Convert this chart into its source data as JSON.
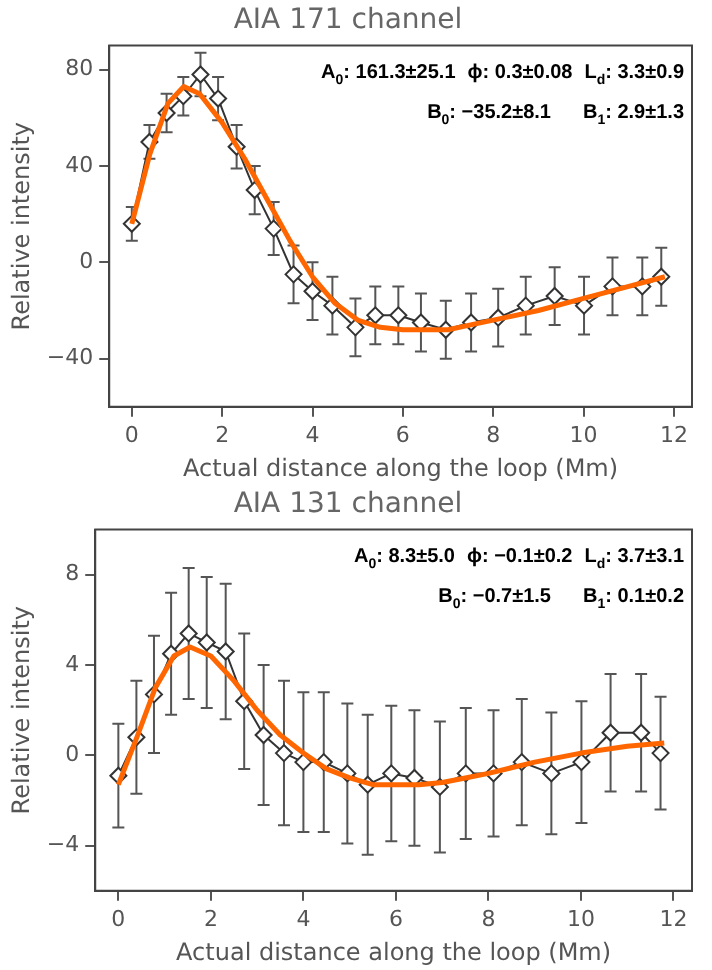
{
  "chart_data": [
    {
      "type": "line",
      "title": "AIA 171 channel",
      "xlabel": "Actual distance along the loop (Mm)",
      "ylabel": "Relative intensity",
      "xlim": [
        -0.5,
        12.4
      ],
      "xticks": [
        0,
        2,
        4,
        6,
        8,
        10,
        12
      ],
      "ylim": [
        -60,
        90
      ],
      "yticks": [
        -40,
        0,
        40,
        80
      ],
      "grid": false,
      "legend": false,
      "annotations": [
        "A$_{0}$: 161.3±25.1",
        "ϕ: 0.3±0.08",
        "L$_{d}$: 3.3±0.9",
        "B$_{0}$: −35.2±8.1",
        "B$_{1}$: 2.9±1.3"
      ],
      "series": [
        {
          "marker": "diamond",
          "line_style": "solid",
          "color": "#333333",
          "x": [
            0,
            0.39,
            0.77,
            1.14,
            1.52,
            1.91,
            2.32,
            2.72,
            3.14,
            3.58,
            4.0,
            4.44,
            4.95,
            5.39,
            5.9,
            6.4,
            6.95,
            7.51,
            8.11,
            8.72,
            9.36,
            10.01,
            10.64,
            11.3,
            11.72
          ],
          "values": [
            16,
            50,
            62,
            69,
            78,
            68,
            48,
            30,
            14,
            -5,
            -12,
            -18,
            -27,
            -22,
            -22,
            -25,
            -28,
            -25,
            -23,
            -18,
            -14,
            -18,
            -10,
            -10,
            -6
          ],
          "errors": [
            7,
            7,
            8,
            8,
            9,
            9,
            9,
            10,
            11,
            12,
            12,
            12,
            12,
            12,
            12,
            12,
            12,
            12,
            12,
            12,
            12,
            12,
            12,
            12,
            12
          ]
        },
        {
          "marker": "none",
          "line_style": "solid",
          "color": "#ff6600",
          "x": [
            0,
            0.4,
            0.8,
            1.15,
            1.5,
            2,
            2.5,
            3,
            3.5,
            4,
            4.5,
            5,
            5.5,
            6,
            6.5,
            7,
            7.5,
            8,
            9,
            10,
            11,
            11.8
          ],
          "values": [
            16,
            45,
            66,
            73,
            70,
            58,
            43,
            26,
            9,
            -6,
            -17,
            -24,
            -27,
            -28,
            -28,
            -28,
            -26,
            -24,
            -20,
            -15,
            -10,
            -6
          ]
        }
      ]
    },
    {
      "type": "line",
      "title": "AIA 131 channel",
      "xlabel": "Actual distance along the loop (Mm)",
      "ylabel": "Relative intensity",
      "xlim": [
        -0.5,
        12.4
      ],
      "xticks": [
        0,
        2,
        4,
        6,
        8,
        10,
        12
      ],
      "ylim": [
        -6,
        10
      ],
      "yticks": [
        -4,
        0,
        4,
        8
      ],
      "grid": false,
      "legend": false,
      "annotations": [
        "A$_{0}$: 8.3±5.0",
        "ϕ: −0.1±0.2",
        "L$_{d}$: 3.7±3.1",
        "B$_{0}$: −0.7±1.5",
        "B$_{1}$: 0.1±0.2"
      ],
      "series": [
        {
          "marker": "diamond",
          "line_style": "solid",
          "color": "#333333",
          "x": [
            0,
            0.39,
            0.77,
            1.14,
            1.52,
            1.91,
            2.32,
            2.72,
            3.14,
            3.58,
            4.0,
            4.44,
            4.95,
            5.39,
            5.9,
            6.4,
            6.95,
            7.51,
            8.11,
            8.72,
            9.36,
            10.01,
            10.64,
            11.3,
            11.72
          ],
          "values": [
            -0.9,
            0.8,
            2.7,
            4.5,
            5.4,
            5.0,
            4.6,
            2.4,
            0.9,
            0.1,
            -0.3,
            -0.3,
            -0.8,
            -1.3,
            -0.8,
            -1.0,
            -1.4,
            -0.8,
            -0.8,
            -0.3,
            -0.8,
            -0.3,
            1.0,
            1.0,
            0.1
          ],
          "errors": [
            2.3,
            2.5,
            2.6,
            2.7,
            2.9,
            2.9,
            3,
            3,
            3.1,
            3.2,
            3.1,
            3.1,
            3.1,
            3.1,
            3,
            3,
            2.9,
            2.9,
            2.8,
            2.8,
            2.7,
            2.7,
            2.6,
            2.6,
            2.5
          ]
        },
        {
          "marker": "none",
          "line_style": "solid",
          "color": "#ff6600",
          "x": [
            0,
            0.4,
            0.8,
            1.2,
            1.55,
            2,
            2.5,
            3,
            3.5,
            4,
            4.5,
            5,
            5.5,
            6,
            6.5,
            7,
            7.5,
            8,
            9,
            10,
            11,
            11.8
          ],
          "values": [
            -1.3,
            0.8,
            3.0,
            4.4,
            4.8,
            4.4,
            3.3,
            2.0,
            0.9,
            0.1,
            -0.6,
            -1.0,
            -1.3,
            -1.3,
            -1.3,
            -1.2,
            -1.0,
            -0.8,
            -0.3,
            0.1,
            0.4,
            0.55
          ]
        }
      ]
    }
  ]
}
